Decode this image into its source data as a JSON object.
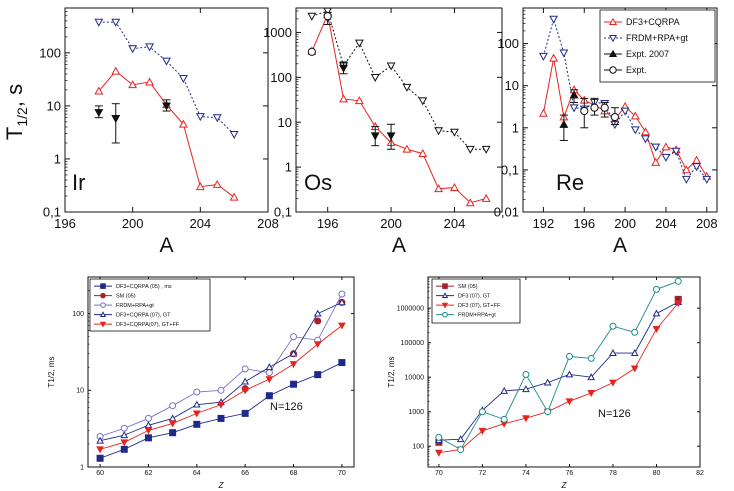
{
  "colors": {
    "red": "#e8231f",
    "navy": "#1f2a8a",
    "teal": "#1a8a8a",
    "darkred": "#a8202a",
    "purple": "#7a72c8",
    "black": "#111111"
  },
  "chart_data": [
    {
      "id": "ir",
      "type": "line",
      "xlabel": "A",
      "ylabel": "T1/2, s",
      "ylabel_main": "T",
      "ylabel_sub": "1/2",
      "ylabel_rest": ", s",
      "annotation": "Ir",
      "xlim": [
        196,
        208
      ],
      "ylim": [
        0.1,
        700
      ],
      "yscale": "log",
      "xticks": [
        196,
        200,
        204,
        208
      ],
      "yticks": [
        0.1,
        1,
        10,
        100
      ],
      "ytick_labels": [
        "0,1",
        "1",
        "10",
        "100"
      ],
      "series": [
        {
          "style": "red-open-triangle",
          "color": "red",
          "x": [
            198,
            199,
            200,
            201,
            202,
            203,
            204,
            205,
            206
          ],
          "y": [
            19,
            45,
            25,
            28,
            10.5,
            4.5,
            0.3,
            0.33,
            0.19
          ]
        },
        {
          "style": "dotted-open-down-triangle",
          "color": "navy",
          "x": [
            198,
            199,
            200,
            201,
            202,
            203,
            204,
            205,
            206
          ],
          "y": [
            380,
            380,
            120,
            130,
            70,
            33,
            6.3,
            6.0,
            2.9
          ]
        },
        {
          "style": "filled-down-triangle-err",
          "color": "black",
          "x": [
            198,
            199,
            202
          ],
          "y": [
            7.5,
            5.8,
            10
          ],
          "yerr_low": [
            6,
            2,
            8
          ],
          "yerr_high": [
            10,
            11,
            13
          ]
        }
      ]
    },
    {
      "id": "os",
      "type": "line",
      "xlabel": "A",
      "annotation": "Os",
      "xlim": [
        194,
        207
      ],
      "ylim": [
        0.1,
        3500
      ],
      "yscale": "log",
      "xticks": [
        196,
        200,
        204
      ],
      "yticks": [
        0.1,
        1,
        10,
        100,
        1000
      ],
      "ytick_labels": [
        "0,1",
        "1",
        "10",
        "100",
        "1000"
      ],
      "series": [
        {
          "style": "red-open-triangle",
          "color": "red",
          "x": [
            195,
            196,
            197,
            198,
            199,
            200,
            201,
            202,
            203,
            204,
            205,
            206
          ],
          "y": [
            380,
            2500,
            33,
            30,
            8,
            3.5,
            2.5,
            2.0,
            0.33,
            0.35,
            0.16,
            0.2
          ]
        },
        {
          "style": "dotted-open-down-triangle",
          "color": "black",
          "x": [
            195,
            196,
            197,
            198,
            199,
            200,
            201,
            202,
            203,
            204,
            205,
            206
          ],
          "y": [
            2300,
            3000,
            180,
            580,
            100,
            180,
            60,
            30,
            6.5,
            6.0,
            2.5,
            2.5
          ]
        },
        {
          "style": "filled-down-triangle-err",
          "color": "black",
          "x": [
            196,
            197,
            199,
            200
          ],
          "y": [
            2100,
            160,
            5,
            5
          ],
          "yerr_low": [
            1500,
            120,
            3,
            2.5
          ],
          "yerr_high": [
            2800,
            220,
            8,
            9
          ]
        },
        {
          "style": "open-circle",
          "color": "black",
          "x": [
            195,
            196
          ],
          "y": [
            370,
            2300
          ]
        }
      ]
    },
    {
      "id": "re",
      "type": "line",
      "xlabel": "A",
      "annotation": "Re",
      "xlim": [
        190,
        209
      ],
      "ylim": [
        0.01,
        700
      ],
      "yscale": "log",
      "xticks": [
        192,
        196,
        200,
        204,
        208
      ],
      "yticks": [
        0.01,
        0.1,
        1,
        10,
        100
      ],
      "ytick_labels": [
        "0,01",
        "0,1",
        "1",
        "10",
        "100"
      ],
      "legend": [
        "DF3+CQRPA",
        "FRDM+RPA+gt",
        "Expt. 2007",
        "Expt."
      ],
      "series": [
        {
          "style": "red-open-triangle",
          "color": "red",
          "x": [
            192,
            193,
            194,
            195,
            196,
            197,
            198,
            199,
            200,
            201,
            202,
            203,
            204,
            205,
            206,
            207,
            208
          ],
          "y": [
            2.2,
            45,
            1.8,
            8,
            4.5,
            3.5,
            2.5,
            1.6,
            3.2,
            1.9,
            0.8,
            0.15,
            0.35,
            0.3,
            0.1,
            0.17,
            0.07
          ]
        },
        {
          "style": "dotted-open-down-triangle",
          "color": "navy",
          "x": [
            192,
            193,
            194,
            195,
            196,
            197,
            198,
            199,
            200,
            201,
            202,
            203,
            204,
            205,
            206,
            207,
            208
          ],
          "y": [
            50,
            380,
            60,
            3.0,
            2.8,
            4.0,
            3.8,
            1.2,
            2.5,
            0.9,
            0.55,
            0.35,
            0.2,
            0.28,
            0.06,
            0.12,
            0.06
          ]
        },
        {
          "style": "filled-up-triangle-err",
          "color": "black",
          "x": [
            194,
            195
          ],
          "y": [
            1.2,
            6
          ],
          "yerr_low": [
            0.5,
            4
          ],
          "yerr_high": [
            2,
            8
          ]
        },
        {
          "style": "open-circle",
          "color": "black",
          "x": [
            196,
            197,
            198,
            199
          ],
          "y": [
            2.5,
            3,
            3.0,
            1.8
          ],
          "yerr_low": [
            1.0,
            2,
            1.8,
            1.2
          ],
          "yerr_high": [
            5,
            5,
            4,
            3
          ]
        }
      ]
    },
    {
      "id": "n126-low",
      "type": "line",
      "xlabel": "Z",
      "ylabel": "T1/2, ms",
      "annotation": "N=126",
      "xlim": [
        59.5,
        70.5
      ],
      "ylim": [
        1,
        300
      ],
      "yscale": "log",
      "xticks": [
        60,
        62,
        64,
        66,
        68,
        70
      ],
      "yticks": [
        1,
        10,
        100
      ],
      "ytick_labels": [
        "1",
        "10",
        "100"
      ],
      "legend": [
        "DF3+CQRPA (05) , ms",
        "SM (05)",
        "FRDM+RPA+gt",
        "DF3+CQRPA (07), GT",
        "DF3+CQRPA(07), GT+FF"
      ],
      "series": [
        {
          "style": "filled-square",
          "color": "navy",
          "x": [
            60,
            61,
            62,
            63,
            64,
            65,
            66,
            67,
            68,
            69,
            70
          ],
          "y": [
            1.3,
            1.7,
            2.4,
            2.8,
            3.6,
            4.3,
            5.0,
            8.5,
            12,
            16,
            23
          ]
        },
        {
          "style": "filled-circle",
          "color": "darkred",
          "x": [
            66,
            68,
            69,
            70
          ],
          "y": [
            10.5,
            30,
            80,
            140
          ]
        },
        {
          "style": "open-circle",
          "color": "purple",
          "x": [
            60,
            61,
            62,
            63,
            64,
            65,
            66,
            67,
            68,
            69,
            70
          ],
          "y": [
            2.5,
            3.2,
            4.3,
            6.3,
            9.5,
            10,
            19,
            17,
            50,
            45,
            180
          ]
        },
        {
          "style": "open-triangle",
          "color": "navy",
          "x": [
            60,
            61,
            62,
            63,
            64,
            65,
            66,
            67,
            68,
            69,
            70
          ],
          "y": [
            2.2,
            2.6,
            3.5,
            4.3,
            6.5,
            7.0,
            13,
            20,
            30,
            100,
            140
          ]
        },
        {
          "style": "filled-down-triangle",
          "color": "red",
          "x": [
            60,
            61,
            62,
            63,
            64,
            65,
            66,
            67,
            68,
            69,
            70
          ],
          "y": [
            1.7,
            2.1,
            3.0,
            3.7,
            5.0,
            6.5,
            10,
            14,
            22,
            40,
            70
          ]
        }
      ]
    },
    {
      "id": "n126-high",
      "type": "line",
      "xlabel": "Z",
      "ylabel": "T1/2, ms",
      "annotation": "N=126",
      "xlim": [
        69.5,
        82
      ],
      "ylim": [
        25,
        8000000
      ],
      "yscale": "log",
      "xticks": [
        70,
        72,
        74,
        76,
        78,
        80,
        82
      ],
      "yticks": [
        100,
        1000,
        10000,
        100000,
        1000000
      ],
      "ytick_labels": [
        "100",
        "1000",
        "10000",
        "100000",
        "1000000"
      ],
      "legend": [
        "SM (05)",
        "DF3 (07), GT",
        "DF3 (07), GT+FF",
        "FRDM+RPA+gt"
      ],
      "series": [
        {
          "style": "filled-square",
          "color": "darkred",
          "x": [
            70,
            81
          ],
          "y": [
            130,
            1800000
          ]
        },
        {
          "style": "open-triangle",
          "color": "navy",
          "x": [
            70,
            71,
            72,
            73,
            74,
            75,
            76,
            77,
            78,
            79,
            80,
            81
          ],
          "y": [
            150,
            160,
            1100,
            4000,
            4500,
            7000,
            12000,
            10000,
            50000,
            50000,
            700000,
            1500000
          ]
        },
        {
          "style": "filled-down-triangle",
          "color": "red",
          "x": [
            70,
            71,
            72,
            73,
            74,
            75,
            76,
            77,
            78,
            79,
            80,
            81
          ],
          "y": [
            65,
            80,
            280,
            450,
            650,
            1000,
            2000,
            3500,
            7000,
            18000,
            250000,
            1400000
          ]
        },
        {
          "style": "open-circle",
          "color": "teal",
          "x": [
            70,
            71,
            72,
            73,
            74,
            75,
            76,
            77,
            78,
            79,
            80,
            81
          ],
          "y": [
            180,
            80,
            1000,
            600,
            12000,
            1000,
            40000,
            35000,
            300000,
            200000,
            3500000,
            6000000
          ]
        }
      ]
    }
  ]
}
